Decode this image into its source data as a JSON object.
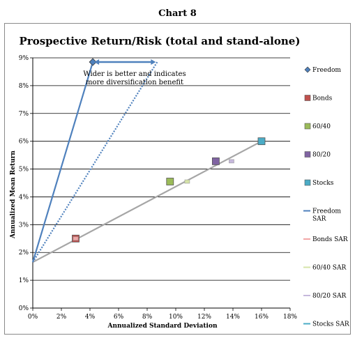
{
  "page": {
    "header": "Chart 8"
  },
  "chart_data": {
    "type": "scatter",
    "title": "Prospective Return/Risk (total and stand-alone)",
    "xlabel": "Annualized Standard Deviation",
    "ylabel": "Annualized Mean Return",
    "xlim": [
      0,
      18
    ],
    "ylim": [
      0,
      9
    ],
    "x_ticks": [
      "0%",
      "2%",
      "4%",
      "6%",
      "8%",
      "10%",
      "12%",
      "14%",
      "16%",
      "18%"
    ],
    "y_ticks": [
      "0%",
      "1%",
      "2%",
      "3%",
      "4%",
      "5%",
      "6%",
      "7%",
      "8%",
      "9%"
    ],
    "grid": "horizontal",
    "legend_position": "right",
    "annotation": {
      "lines": [
        "Wider is better and indicates",
        "more diversification benefit"
      ],
      "arrow_from": [
        4.2,
        8.85
      ],
      "arrow_to": [
        8.7,
        8.85
      ]
    },
    "series": [
      {
        "name": "Freedom",
        "marker": "diamond",
        "color": "#4f81bd",
        "points": [
          [
            4.2,
            8.85
          ]
        ]
      },
      {
        "name": "Bonds",
        "marker": "square",
        "color": "#c0504d",
        "points": [
          [
            3.0,
            2.5
          ]
        ]
      },
      {
        "name": "60/40",
        "marker": "square",
        "color": "#9bbb59",
        "points": [
          [
            9.6,
            4.55
          ]
        ]
      },
      {
        "name": "80/20",
        "marker": "square",
        "color": "#8064a2",
        "points": [
          [
            12.8,
            5.28
          ]
        ]
      },
      {
        "name": "Stocks",
        "marker": "square",
        "color": "#4bacc6",
        "points": [
          [
            16.0,
            6.0
          ]
        ]
      },
      {
        "name": "Freedom SAR",
        "marker": "line",
        "color": "#4f81bd",
        "points": [
          [
            0,
            1.65
          ],
          [
            4.2,
            8.85
          ]
        ]
      },
      {
        "name": "Bonds SAR",
        "marker": "small-square",
        "color": "#f2a6a6",
        "points": [
          [
            3.0,
            2.5
          ]
        ]
      },
      {
        "name": "60/40 SAR",
        "marker": "small-square",
        "color": "#d6e4a8",
        "points": [
          [
            10.8,
            4.55
          ]
        ]
      },
      {
        "name": "80/20 SAR",
        "marker": "small-square",
        "color": "#c6b8dc",
        "points": [
          [
            13.9,
            5.28
          ]
        ]
      },
      {
        "name": "Stocks SAR",
        "marker": "line",
        "color": "#4bacc6",
        "points": []
      }
    ],
    "lines": [
      {
        "name": "total-frontier-line",
        "style": "dotted",
        "color": "#4f81bd",
        "points": [
          [
            0,
            1.65
          ],
          [
            8.7,
            8.85
          ]
        ]
      },
      {
        "name": "stand-alone-line",
        "style": "solid",
        "color": "#a6a6a6",
        "points": [
          [
            0,
            1.65
          ],
          [
            16.0,
            6.0
          ]
        ]
      }
    ]
  }
}
